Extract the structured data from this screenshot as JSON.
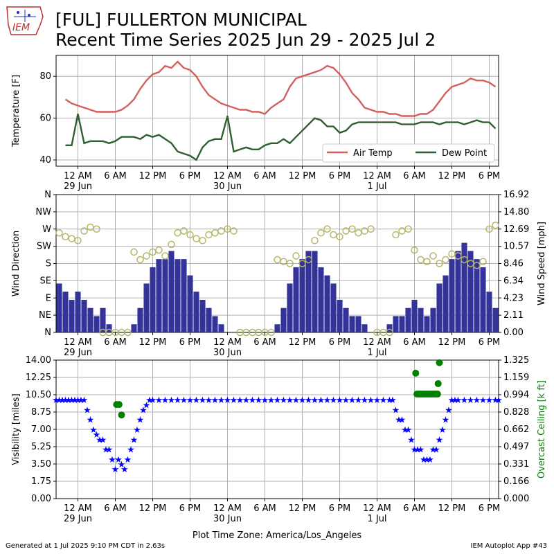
{
  "title_line1": "[FUL] FULLERTON MUNICIPAL",
  "title_line2": "Recent Time Series 2025 Jun 29 - 2025 Jul 2",
  "logo_text": "IEM",
  "footer_left": "Generated at 1 Jul 2025 9:10 PM CDT in 2.63s",
  "footer_right": "IEM Autoplot App #43",
  "timezone_label": "Plot Time Zone: America/Los_Angeles",
  "colors": {
    "air_temp": "#d45f5f",
    "dew_point": "#2f5f2f",
    "wind_bar": "#333399",
    "wind_dir": "#b5b56a",
    "visibility": "#0000ff",
    "ceiling": "#008000",
    "grid": "#b0b0b0"
  },
  "x_axis": {
    "tick_labels": [
      "12 AM",
      "6 AM",
      "12 PM",
      "6 PM",
      "12 AM",
      "6 AM",
      "12 PM",
      "6 PM",
      "12 AM",
      "6 AM",
      "12 PM",
      "6 PM"
    ],
    "tick_hours": [
      0,
      6,
      12,
      18,
      24,
      30,
      36,
      42,
      48,
      54,
      60,
      66
    ],
    "date_labels": [
      "29 Jun",
      "30 Jun",
      "1 Jul"
    ],
    "date_hours": [
      0,
      24,
      48
    ],
    "range_hours": [
      -3.5,
      67.5
    ]
  },
  "chart_data": [
    {
      "type": "line",
      "ylabel": "Temperature [F]",
      "ylim": [
        37,
        90
      ],
      "yticks": [
        40,
        60,
        80
      ],
      "grid": true,
      "legend_position": "lower-right",
      "x_hours": [
        -2,
        -1,
        0,
        1,
        2,
        3,
        4,
        5,
        6,
        7,
        8,
        9,
        10,
        11,
        12,
        13,
        14,
        15,
        16,
        17,
        18,
        19,
        20,
        21,
        22,
        23,
        24,
        25,
        26,
        27,
        28,
        29,
        30,
        31,
        32,
        33,
        34,
        35,
        36,
        37,
        38,
        39,
        40,
        41,
        42,
        43,
        44,
        45,
        46,
        47,
        48,
        49,
        50,
        51,
        52,
        53,
        54,
        55,
        56,
        57,
        58,
        59,
        60,
        61,
        62,
        63,
        64,
        65,
        66,
        67
      ],
      "series": [
        {
          "name": "Air Temp",
          "values": [
            69,
            67,
            66,
            65,
            64,
            63,
            63,
            63,
            63,
            64,
            66,
            69,
            74,
            78,
            81,
            82,
            85,
            84,
            87,
            84,
            83,
            80,
            75,
            71,
            69,
            67,
            66,
            65,
            64,
            64,
            63,
            63,
            62,
            65,
            67,
            69,
            75,
            79,
            80,
            81,
            82,
            83,
            85,
            84,
            81,
            77,
            72,
            69,
            65,
            64,
            63,
            63,
            62,
            62,
            61,
            61,
            61,
            62,
            62,
            64,
            68,
            72,
            75,
            76,
            77,
            79,
            78,
            78,
            77,
            75
          ]
        },
        {
          "name": "Dew Point",
          "values": [
            47,
            47,
            62,
            48,
            49,
            49,
            49,
            48,
            49,
            51,
            51,
            51,
            50,
            52,
            51,
            52,
            50,
            48,
            44,
            43,
            42,
            40,
            46,
            49,
            50,
            50,
            61,
            44,
            45,
            46,
            45,
            45,
            47,
            48,
            48,
            50,
            48,
            51,
            54,
            57,
            60,
            59,
            56,
            56,
            53,
            54,
            57,
            58,
            58,
            58,
            58,
            58,
            58,
            58,
            57,
            57,
            57,
            58,
            58,
            58,
            57,
            58,
            58,
            58,
            57,
            58,
            59,
            58,
            58,
            55
          ]
        }
      ]
    },
    {
      "type": "bar",
      "ylabel": "Wind Direction",
      "y2label": "Wind Speed [mph]",
      "yticks": [
        "N",
        "NE",
        "E",
        "SE",
        "S",
        "SW",
        "W",
        "NW",
        "N"
      ],
      "ylim_deg": [
        0,
        360
      ],
      "y2ticks": [
        "0.00",
        "2.11",
        "4.23",
        "6.34",
        "8.46",
        "10.57",
        "12.69",
        "14.80",
        "16.92"
      ],
      "y2lim": [
        0,
        16.92
      ],
      "grid": true,
      "x_hours": [
        -3,
        -2,
        -1,
        0,
        1,
        2,
        3,
        4,
        5,
        6,
        7,
        8,
        9,
        10,
        11,
        12,
        13,
        14,
        15,
        16,
        17,
        18,
        19,
        20,
        21,
        22,
        23,
        24,
        25,
        26,
        27,
        28,
        29,
        30,
        31,
        32,
        33,
        34,
        35,
        36,
        37,
        38,
        39,
        40,
        41,
        42,
        43,
        44,
        45,
        46,
        47,
        48,
        49,
        50,
        51,
        52,
        53,
        54,
        55,
        56,
        57,
        58,
        59,
        60,
        61,
        62,
        63,
        64,
        65,
        66,
        67
      ],
      "series": [
        {
          "name": "Wind Speed",
          "values": [
            6,
            5,
            4,
            5,
            4,
            3,
            2,
            3,
            1,
            0,
            0,
            0,
            1,
            3,
            6,
            8,
            9,
            9,
            10,
            9,
            9,
            7,
            5,
            4,
            3,
            2,
            1,
            0,
            0,
            0,
            0,
            0,
            0,
            0,
            0,
            1,
            3,
            6,
            8,
            9,
            10,
            10,
            8,
            7,
            6,
            4,
            3,
            2,
            2,
            1,
            0,
            0,
            0,
            1,
            2,
            2,
            3,
            4,
            3,
            2,
            3,
            6,
            7,
            9,
            10,
            11,
            10,
            9,
            8,
            5,
            3
          ]
        },
        {
          "name": "Wind Direction",
          "values": [
            260,
            250,
            245,
            240,
            265,
            275,
            270,
            0,
            0,
            0,
            0,
            0,
            210,
            190,
            200,
            210,
            215,
            200,
            230,
            260,
            265,
            255,
            245,
            240,
            255,
            260,
            265,
            270,
            265,
            0,
            0,
            0,
            0,
            0,
            0,
            190,
            185,
            180,
            200,
            180,
            190,
            240,
            260,
            270,
            255,
            250,
            265,
            270,
            260,
            265,
            270,
            0,
            0,
            0,
            255,
            265,
            270,
            215,
            190,
            185,
            200,
            180,
            190,
            205,
            200,
            190,
            180,
            175,
            185,
            270,
            280
          ]
        }
      ]
    },
    {
      "type": "scatter",
      "ylabel": "Visibility [miles]",
      "y2label": "Overcast Ceiling [k ft]",
      "ylim": [
        0,
        14
      ],
      "yticks": [
        "0.00",
        "1.75",
        "3.50",
        "5.25",
        "7.00",
        "8.75",
        "10.50",
        "12.25",
        "14.00"
      ],
      "y2lim": [
        0,
        1.325
      ],
      "y2ticks": [
        "0.000",
        "0.166",
        "0.331",
        "0.497",
        "0.662",
        "0.828",
        "0.994",
        "1.159",
        "1.325"
      ],
      "grid": true,
      "xlabel": "Plot Time Zone: America/Los_Angeles",
      "series": [
        {
          "name": "Visibility",
          "x_hours": [
            -3.5,
            -3,
            -2.5,
            -2,
            -1.5,
            -1,
            -0.5,
            0,
            0.5,
            1,
            1.5,
            2,
            2.5,
            3,
            3.5,
            4,
            4.5,
            5,
            5.5,
            6,
            6.5,
            7,
            7.5,
            8,
            8.5,
            9,
            9.5,
            10,
            10.5,
            11,
            11.5,
            12,
            13,
            14,
            15,
            16,
            17,
            18,
            19,
            20,
            21,
            22,
            23,
            24,
            25,
            26,
            27,
            28,
            29,
            30,
            31,
            32,
            33,
            34,
            35,
            36,
            37,
            38,
            39,
            40,
            41,
            42,
            43,
            44,
            45,
            46,
            47,
            48,
            49,
            50,
            50.5,
            51,
            51.5,
            52,
            52.5,
            53,
            53.5,
            54,
            54.5,
            55,
            55.5,
            56,
            56.5,
            57,
            57.5,
            58,
            58.5,
            59,
            59.5,
            60,
            60.5,
            61,
            62,
            63,
            64,
            65,
            66,
            67,
            67.5
          ],
          "values": [
            10,
            10,
            10,
            10,
            10,
            10,
            10,
            10,
            10,
            10,
            9,
            8,
            7,
            6.5,
            6,
            6,
            5,
            5,
            4,
            3,
            4,
            3.5,
            3,
            4,
            5,
            6,
            7,
            8,
            9,
            9.5,
            10,
            10,
            10,
            10,
            10,
            10,
            10,
            10,
            10,
            10,
            10,
            10,
            10,
            10,
            10,
            10,
            10,
            10,
            10,
            10,
            10,
            10,
            10,
            10,
            10,
            10,
            10,
            10,
            10,
            10,
            10,
            10,
            10,
            10,
            10,
            10,
            10,
            10,
            10,
            10,
            10,
            9,
            8,
            8,
            7,
            7,
            6,
            5,
            5,
            5,
            4,
            4,
            4,
            5,
            5,
            6,
            7,
            8,
            9,
            10,
            10,
            10,
            10,
            10,
            10,
            10,
            10,
            10,
            10
          ]
        },
        {
          "name": "Overcast Ceiling",
          "x_hours": [
            6.2,
            6.6,
            7.0,
            54.2,
            54.4,
            54.7,
            55.0,
            55.3,
            55.6,
            55.9,
            56.2,
            56.5,
            56.8,
            57.1,
            57.4,
            57.7,
            57.8,
            58.0
          ],
          "values": [
            0.9,
            0.9,
            0.8,
            1.2,
            1.0,
            1.0,
            1.0,
            1.0,
            1.0,
            1.0,
            1.0,
            1.0,
            1.0,
            1.0,
            1.0,
            1.0,
            1.1,
            1.3
          ]
        }
      ]
    }
  ]
}
